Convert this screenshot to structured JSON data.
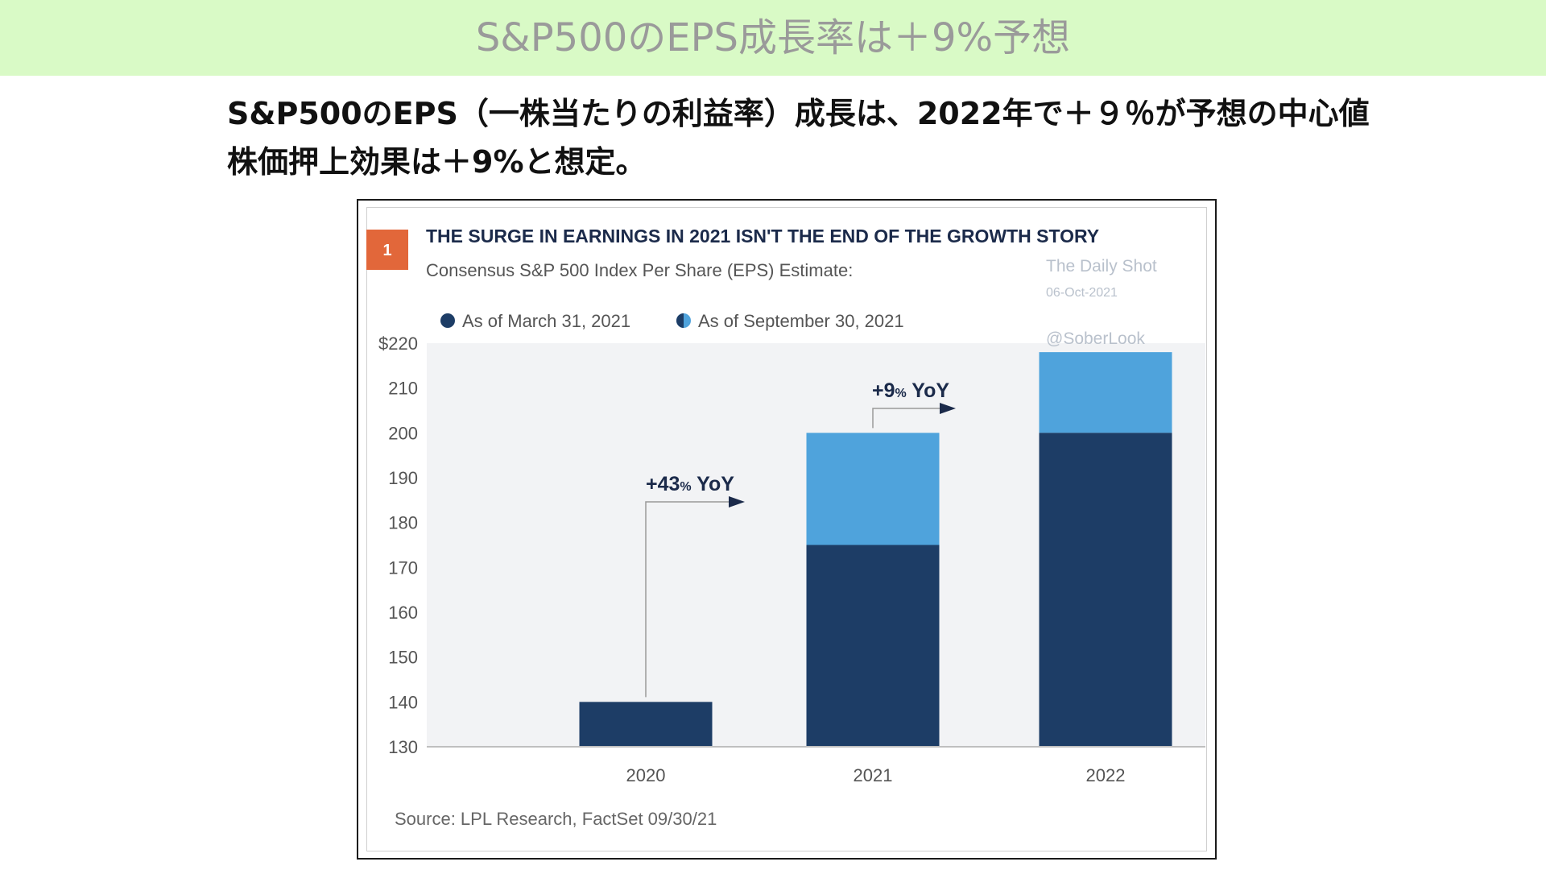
{
  "banner": {
    "title": "S&P500のEPS成長率は＋9%予想"
  },
  "subtitle": {
    "line1": "S&P500のEPS（一株当たりの利益率）成長は、2022年で＋９％が予想の中心値",
    "line2": "株価押上効果は＋9%と想定。"
  },
  "colors": {
    "banner_bg": "#d9fac6",
    "march_series": "#1d3d66",
    "sept_series": "#4fa3dc",
    "badge": "#e2673a",
    "title_text": "#1b2a4a",
    "plot_bg": "#f2f3f5"
  },
  "chart_data": {
    "type": "bar",
    "badge": "1",
    "title": "THE SURGE IN EARNINGS IN 2021 ISN'T THE END OF THE GROWTH STORY",
    "subtitle": "Consensus S&P 500 Index Per Share (EPS) Estimate:",
    "categories": [
      "2020",
      "2021",
      "2022"
    ],
    "series": [
      {
        "name": "As of March 31, 2021",
        "values": [
          140,
          175,
          200
        ]
      },
      {
        "name": "As of September 30, 2021",
        "values": [
          140,
          200,
          218
        ]
      }
    ],
    "ylim": [
      130,
      220
    ],
    "yticks": [
      "$220",
      "210",
      "200",
      "190",
      "180",
      "170",
      "160",
      "150",
      "140",
      "130"
    ],
    "legend_position": "top-left",
    "annotations": [
      {
        "text": "+43",
        "unit": "%",
        "suffix": " YoY",
        "from": "2020",
        "to": "2021"
      },
      {
        "text": "+9",
        "unit": "%",
        "suffix": " YoY",
        "from": "2021",
        "to": "2022"
      }
    ],
    "source": "Source: LPL Research, FactSet   09/30/21",
    "watermark": {
      "name": "The Daily Shot",
      "date": "06-Oct-2021",
      "handle": "@SoberLook"
    }
  }
}
